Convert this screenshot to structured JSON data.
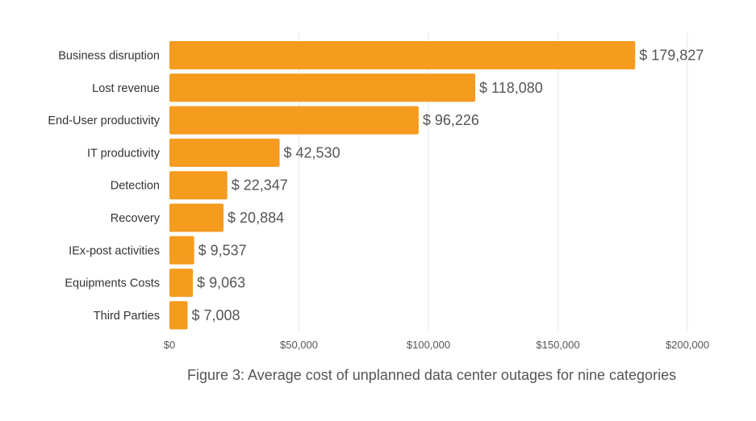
{
  "chart_data": {
    "type": "bar",
    "orientation": "horizontal",
    "categories": [
      "Business disruption",
      "Lost revenue",
      "End-User productivity",
      "IT productivity",
      "Detection",
      "Recovery",
      "IEx-post activities",
      "Equipments Costs",
      "Third Parties"
    ],
    "values": [
      179827,
      118080,
      96226,
      42530,
      22347,
      20884,
      9537,
      9063,
      7008
    ],
    "value_labels": [
      "$ 179,827",
      "$ 118,080",
      "$ 96,226",
      "$ 42,530",
      "$ 22,347",
      "$ 20,884",
      "$ 9,537",
      "$ 9,063",
      "$ 7,008"
    ],
    "x_ticks": [
      0,
      50000,
      100000,
      150000,
      200000
    ],
    "x_tick_labels": [
      "$0",
      "$50,000",
      "$100,000",
      "$150,000",
      "$200,000"
    ],
    "xlim": [
      0,
      200000
    ],
    "grid": "vertical",
    "bar_color": "#F59B1E",
    "caption": "Figure 3: Average cost of unplanned data center outages for nine categories"
  }
}
